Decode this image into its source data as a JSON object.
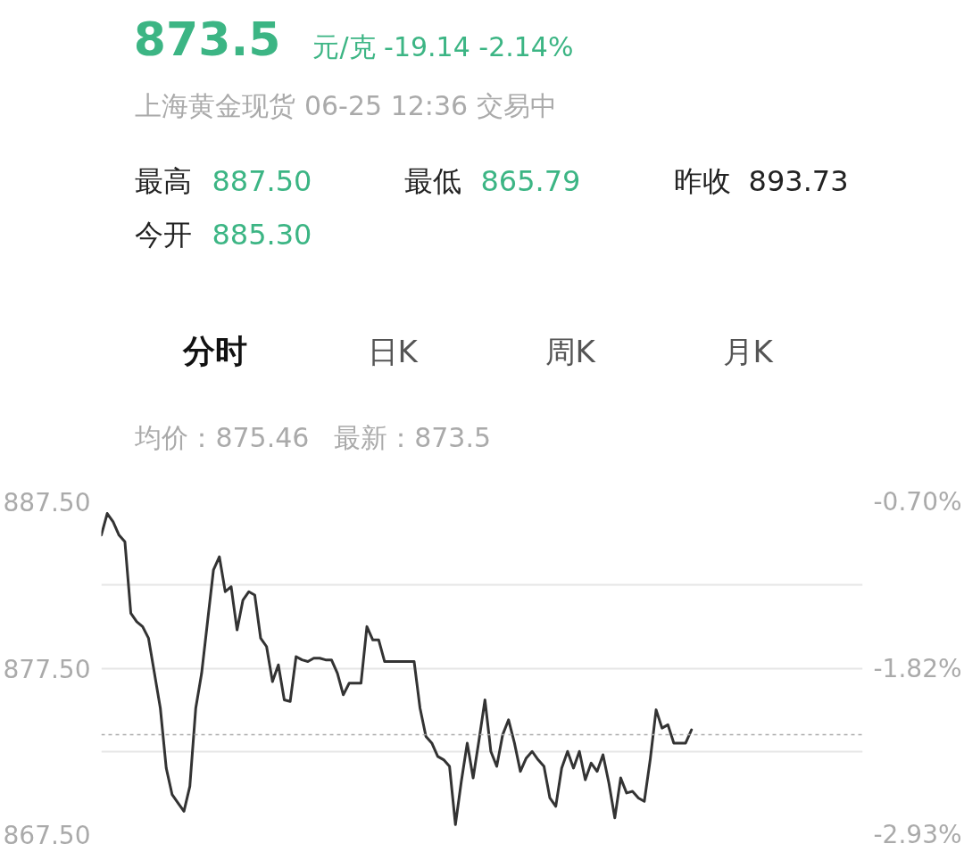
{
  "chart_data": {
    "type": "line",
    "title": "873.5",
    "subtitle": "上海黄金现货 06-25 12:36 交易中",
    "annotations": [
      "元/克 -19.14 -2.14%",
      "最高",
      "887.50",
      "最低",
      "865.79",
      "昨收",
      "893.73",
      "今开",
      "885.30",
      "分时",
      "日K",
      "周K",
      "月K",
      "均价：875.46",
      "最新：873.5"
    ],
    "categories": [
      null,
      null,
      null,
      null,
      null,
      null,
      null,
      null,
      null,
      null,
      null,
      null,
      null,
      null,
      null,
      null,
      null,
      null,
      null,
      null,
      null,
      null,
      null,
      null,
      null,
      null,
      null,
      null,
      null,
      null,
      null,
      null,
      null,
      null,
      null,
      null,
      null,
      null,
      null,
      null,
      null,
      null,
      null,
      null,
      null,
      null,
      null,
      null,
      null,
      null,
      null,
      null,
      null,
      null,
      null,
      null,
      null,
      null,
      null,
      null,
      null,
      null,
      null,
      null,
      null,
      null,
      null,
      null,
      null,
      null,
      null,
      null,
      null,
      null,
      null,
      null,
      null,
      null,
      null,
      null,
      null,
      null,
      null,
      null,
      null,
      null,
      null,
      null,
      null,
      null,
      null,
      null,
      null,
      null,
      null,
      null,
      null,
      null,
      null,
      null,
      null,
      null,
      null,
      null,
      null,
      null,
      null,
      null,
      null,
      null,
      null,
      null,
      null,
      null,
      null,
      null,
      null,
      null,
      null,
      null,
      null,
      null,
      null,
      null,
      null,
      null,
      null,
      null,
      null,
      null
    ],
    "series": [
      {
        "color": "#333333",
        "values": [
          885.5,
          886.8,
          886.3,
          885.5,
          885.1,
          880.8,
          880.3,
          880.0,
          879.3,
          877.2,
          875.1,
          871.5,
          869.9,
          869.4,
          868.9,
          870.4,
          875.1,
          877.2,
          880.3,
          883.4,
          884.2,
          882.1,
          882.4,
          879.8,
          881.6,
          882.1,
          881.9,
          879.3,
          878.8,
          876.7,
          877.7,
          875.6,
          875.5,
          878.2,
          878.0,
          877.9,
          878.1,
          878.1,
          878.0,
          878.0,
          877.2,
          875.9,
          876.6,
          876.6,
          876.6,
          880.0,
          879.2,
          879.2,
          877.9,
          877.9,
          877.9,
          877.9,
          877.9,
          877.9,
          875.1,
          873.4,
          873.0,
          872.2,
          872.0,
          871.6,
          868.1,
          870.7,
          873.0,
          870.9,
          873.2,
          875.6,
          872.5,
          871.6,
          873.5,
          874.4,
          873.0,
          871.3,
          872.1,
          872.5,
          872.0,
          871.6,
          869.7,
          869.2,
          871.5,
          872.5,
          871.5,
          872.5,
          870.8,
          871.8,
          871.3,
          872.3,
          870.6,
          868.5,
          870.9,
          870.0,
          870.1,
          869.7,
          869.5,
          872.0,
          875.0,
          873.9,
          874.1,
          873.0,
          873.0,
          873.0,
          873.8,
          null,
          null,
          null,
          null,
          null,
          null,
          null,
          null,
          null,
          null,
          null,
          null,
          null,
          null,
          null,
          null,
          null,
          null,
          null,
          null,
          null,
          null,
          null,
          null,
          null,
          null,
          null,
          null,
          null
        ]
      }
    ],
    "ylim": [
      867.5,
      887.5
    ],
    "yticks": [
      {
        "value": 867.5,
        "label": "867.50"
      },
      {
        "value": 872.5,
        "label": null
      },
      {
        "value": 877.5,
        "label": "877.50"
      },
      {
        "value": 882.5,
        "label": null
      },
      {
        "value": 887.5,
        "label": "887.50"
      }
    ],
    "y2lim": [
      -2.93,
      -0.7
    ],
    "y2ticks": [
      {
        "value": -2.93,
        "label": "-2.93%"
      },
      {
        "value": -1.82,
        "label": "-1.82%"
      },
      {
        "value": -0.7,
        "label": "-0.70%"
      }
    ],
    "ref_lines": [
      {
        "axis": "y",
        "value": 873.5,
        "color": "#aaaaaa",
        "line_style": "dashed"
      }
    ],
    "grid": "y"
  }
}
